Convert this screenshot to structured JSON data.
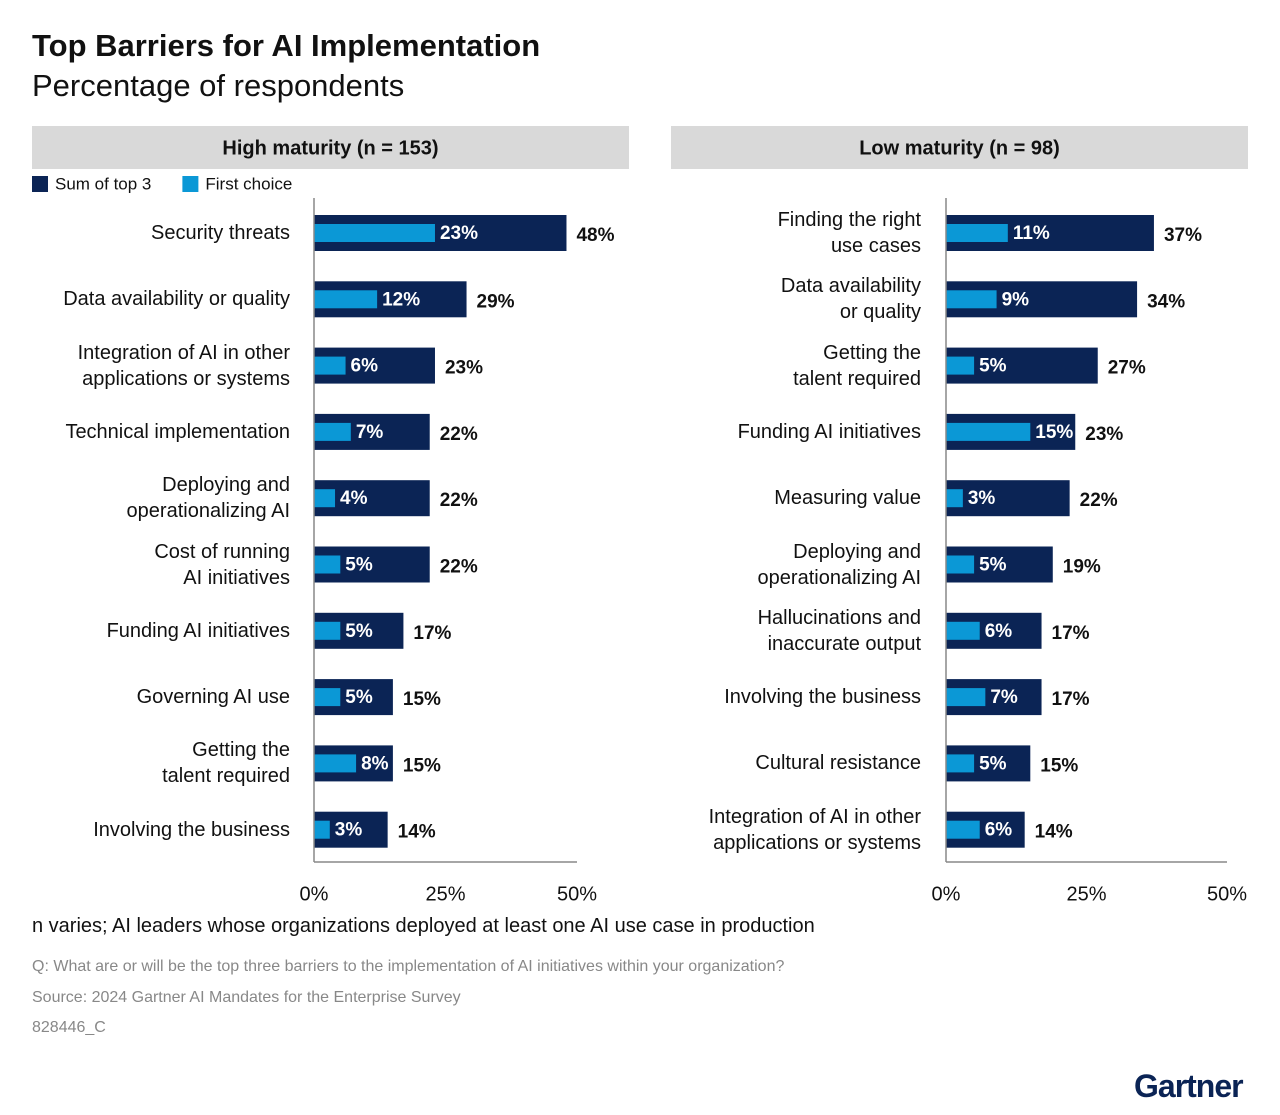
{
  "title": "Top Barriers for AI Implementation",
  "subtitle": "Percentage of respondents",
  "chart_data": [
    {
      "type": "bar",
      "orientation": "horizontal",
      "title": "High maturity (n = 153)",
      "legend": true,
      "categories": [
        "Security threats",
        "Data availability or quality",
        "Integration of AI in other\napplications or systems",
        "Technical implementation",
        "Deploying and\noperationalizing AI",
        "Cost of running\nAI initiatives",
        "Funding AI initiatives",
        "Governing AI use",
        "Getting the\ntalent required",
        "Involving the business"
      ],
      "series": [
        {
          "name": "Sum of top 3",
          "color": "#0b2455",
          "values": [
            48,
            29,
            23,
            22,
            22,
            22,
            17,
            15,
            15,
            14
          ],
          "value_labels": [
            "48%",
            "29%",
            "23%",
            "22%",
            "22%",
            "22%",
            "17%",
            "15%",
            "15%",
            "14%"
          ]
        },
        {
          "name": "First choice",
          "color": "#0b98d6",
          "values": [
            23,
            12,
            6,
            7,
            4,
            5,
            5,
            5,
            8,
            3
          ],
          "value_labels": [
            "23%",
            "12%",
            "6%",
            "7%",
            "4%",
            "5%",
            "5%",
            "5%",
            "8%",
            "3%"
          ]
        }
      ],
      "xlim": [
        0,
        50
      ],
      "xticks": [
        {
          "value": 0,
          "label": "0%"
        },
        {
          "value": 25,
          "label": "25%"
        },
        {
          "value": 50,
          "label": "50%"
        }
      ]
    },
    {
      "type": "bar",
      "orientation": "horizontal",
      "title": "Low maturity (n = 98)",
      "legend": false,
      "categories": [
        "Finding the right\nuse cases",
        "Data availability\nor quality",
        "Getting the\ntalent required",
        "Funding AI initiatives",
        "Measuring value",
        "Deploying and\noperationalizing AI",
        "Hallucinations and\ninaccurate output",
        "Involving the business",
        "Cultural resistance",
        "Integration of AI in other\napplications or systems"
      ],
      "series": [
        {
          "color": "#0b2455",
          "values": [
            37,
            34,
            27,
            23,
            22,
            19,
            17,
            17,
            15,
            14
          ],
          "value_labels": [
            "37%",
            "34%",
            "27%",
            "23%",
            "22%",
            "19%",
            "17%",
            "17%",
            "15%",
            "14%"
          ]
        },
        {
          "color": "#0b98d6",
          "values": [
            11,
            9,
            5,
            15,
            3,
            5,
            6,
            7,
            5,
            6
          ],
          "value_labels": [
            "11%",
            "9%",
            "5%",
            "15%",
            "3%",
            "5%",
            "6%",
            "7%",
            "5%",
            "6%"
          ]
        }
      ],
      "xlim": [
        0,
        50
      ],
      "xticks": [
        {
          "value": 0,
          "label": "0%"
        },
        {
          "value": 25,
          "label": "25%"
        },
        {
          "value": 50,
          "label": "50%"
        }
      ]
    }
  ],
  "note": "n varies; AI leaders whose organizations deployed at least one AI use case in production",
  "question": "Q: What are or will be the top three barriers to the implementation of AI initiatives within your organization?",
  "source": "Source: 2024 Gartner AI Mandates for the Enterprise Survey",
  "code": "828446_C",
  "logo": "Gartner"
}
